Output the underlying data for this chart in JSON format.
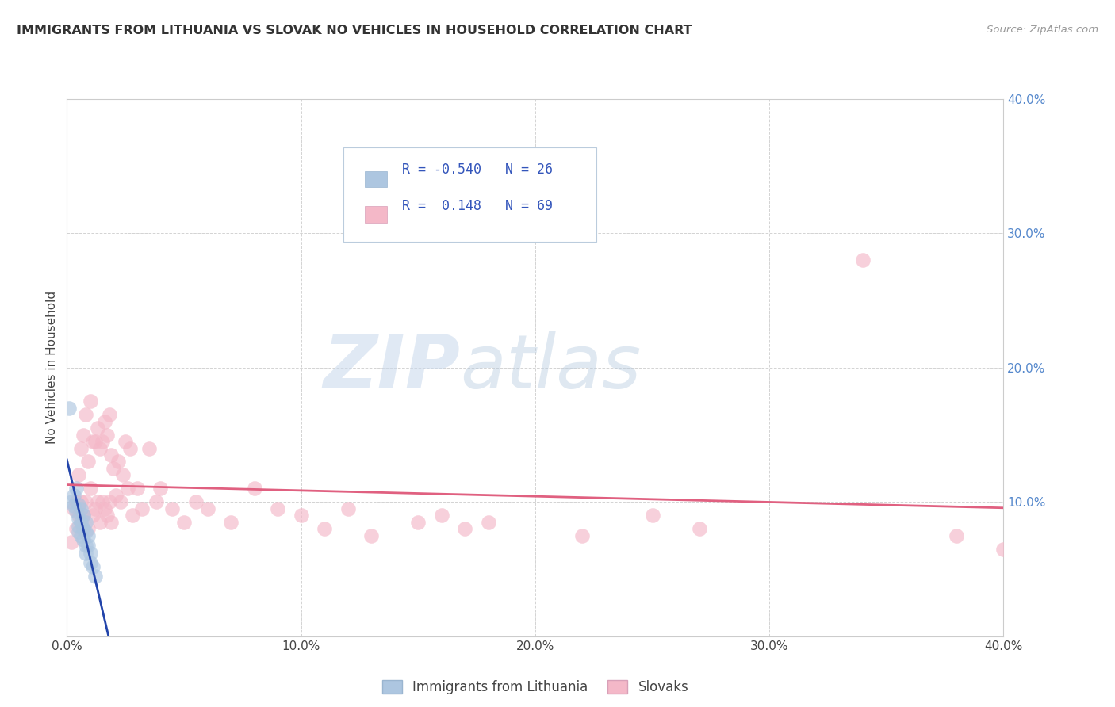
{
  "title": "IMMIGRANTS FROM LITHUANIA VS SLOVAK NO VEHICLES IN HOUSEHOLD CORRELATION CHART",
  "source": "Source: ZipAtlas.com",
  "ylabel": "No Vehicles in Household",
  "xlim": [
    0.0,
    0.4
  ],
  "ylim": [
    0.0,
    0.4
  ],
  "ytick_values": [
    0.1,
    0.2,
    0.3,
    0.4
  ],
  "xtick_values": [
    0.0,
    0.1,
    0.2,
    0.3,
    0.4
  ],
  "legend_label1": "Immigrants from Lithuania",
  "legend_label2": "Slovaks",
  "r1": -0.54,
  "n1": 26,
  "r2": 0.148,
  "n2": 69,
  "color1": "#adc6e0",
  "color2": "#f4b8c8",
  "line_color1": "#2244aa",
  "line_color2": "#e06080",
  "background_color": "#ffffff",
  "grid_color": "#c8c8c8",
  "watermark_zip": "ZIP",
  "watermark_atlas": "atlas",
  "scatter1_x": [
    0.001,
    0.002,
    0.003,
    0.003,
    0.004,
    0.004,
    0.005,
    0.005,
    0.005,
    0.005,
    0.006,
    0.006,
    0.006,
    0.007,
    0.007,
    0.007,
    0.008,
    0.008,
    0.008,
    0.008,
    0.009,
    0.009,
    0.01,
    0.01,
    0.011,
    0.012
  ],
  "scatter1_y": [
    0.17,
    0.1,
    0.105,
    0.097,
    0.11,
    0.093,
    0.098,
    0.088,
    0.082,
    0.078,
    0.095,
    0.085,
    0.075,
    0.09,
    0.08,
    0.072,
    0.085,
    0.078,
    0.068,
    0.062,
    0.075,
    0.068,
    0.062,
    0.055,
    0.052,
    0.045
  ],
  "scatter2_x": [
    0.002,
    0.003,
    0.004,
    0.004,
    0.005,
    0.005,
    0.006,
    0.006,
    0.007,
    0.007,
    0.008,
    0.008,
    0.009,
    0.009,
    0.01,
    0.01,
    0.011,
    0.011,
    0.012,
    0.012,
    0.013,
    0.013,
    0.014,
    0.014,
    0.015,
    0.015,
    0.016,
    0.016,
    0.017,
    0.017,
    0.018,
    0.018,
    0.019,
    0.019,
    0.02,
    0.021,
    0.022,
    0.023,
    0.024,
    0.025,
    0.026,
    0.027,
    0.028,
    0.03,
    0.032,
    0.035,
    0.038,
    0.04,
    0.045,
    0.05,
    0.055,
    0.06,
    0.07,
    0.08,
    0.09,
    0.1,
    0.11,
    0.12,
    0.13,
    0.15,
    0.16,
    0.17,
    0.18,
    0.22,
    0.25,
    0.27,
    0.34,
    0.38,
    0.4
  ],
  "scatter2_y": [
    0.07,
    0.095,
    0.1,
    0.08,
    0.12,
    0.09,
    0.14,
    0.1,
    0.15,
    0.09,
    0.165,
    0.1,
    0.13,
    0.08,
    0.175,
    0.11,
    0.145,
    0.09,
    0.145,
    0.095,
    0.155,
    0.1,
    0.14,
    0.085,
    0.145,
    0.1,
    0.16,
    0.095,
    0.15,
    0.09,
    0.165,
    0.1,
    0.135,
    0.085,
    0.125,
    0.105,
    0.13,
    0.1,
    0.12,
    0.145,
    0.11,
    0.14,
    0.09,
    0.11,
    0.095,
    0.14,
    0.1,
    0.11,
    0.095,
    0.085,
    0.1,
    0.095,
    0.085,
    0.11,
    0.095,
    0.09,
    0.08,
    0.095,
    0.075,
    0.085,
    0.09,
    0.08,
    0.085,
    0.075,
    0.09,
    0.08,
    0.28,
    0.075,
    0.065
  ]
}
